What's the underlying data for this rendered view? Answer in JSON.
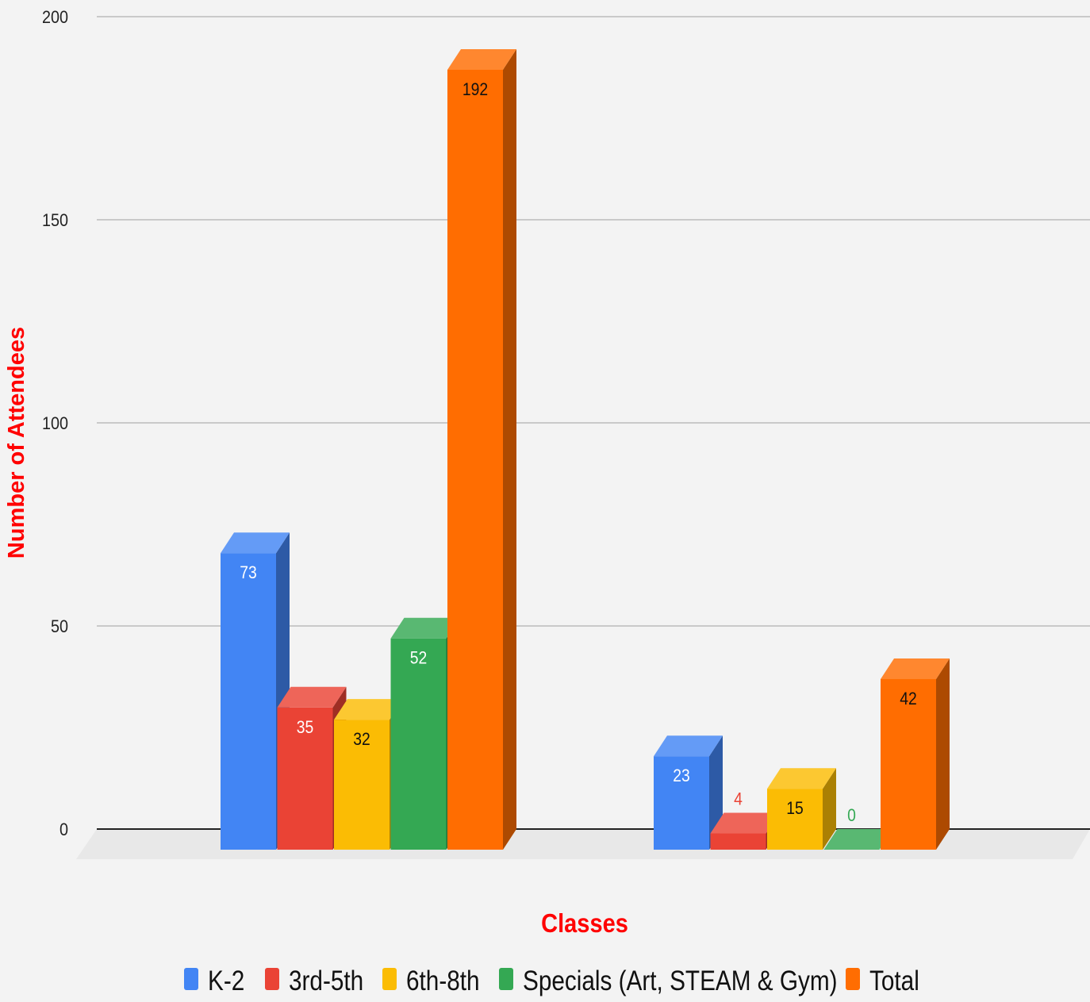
{
  "chart_data": {
    "type": "bar",
    "title": "",
    "xlabel": "Classes",
    "ylabel": "Number of Attendees",
    "ylim": [
      0,
      200
    ],
    "yticks": [
      0,
      50,
      100,
      150,
      200
    ],
    "grid": true,
    "legend_position": "bottom",
    "groups": [
      "",
      ""
    ],
    "series": [
      {
        "name": "K-2",
        "color": "#4285f4",
        "values": [
          73,
          23
        ]
      },
      {
        "name": "3rd-5th",
        "color": "#ea4335",
        "values": [
          35,
          4
        ]
      },
      {
        "name": "6th-8th",
        "color": "#fbbc04",
        "values": [
          32,
          15
        ]
      },
      {
        "name": "Specials (Art, STEAM & Gym)",
        "color": "#34a853",
        "values": [
          52,
          0
        ]
      },
      {
        "name": "Total",
        "color": "#ff6d01",
        "values": [
          192,
          42
        ]
      }
    ],
    "data_labels": [
      [
        "73",
        "35",
        "32",
        "52",
        "192"
      ],
      [
        "23",
        "4",
        "15",
        "0",
        "42"
      ]
    ],
    "axis_title_color": "#ff0000"
  }
}
